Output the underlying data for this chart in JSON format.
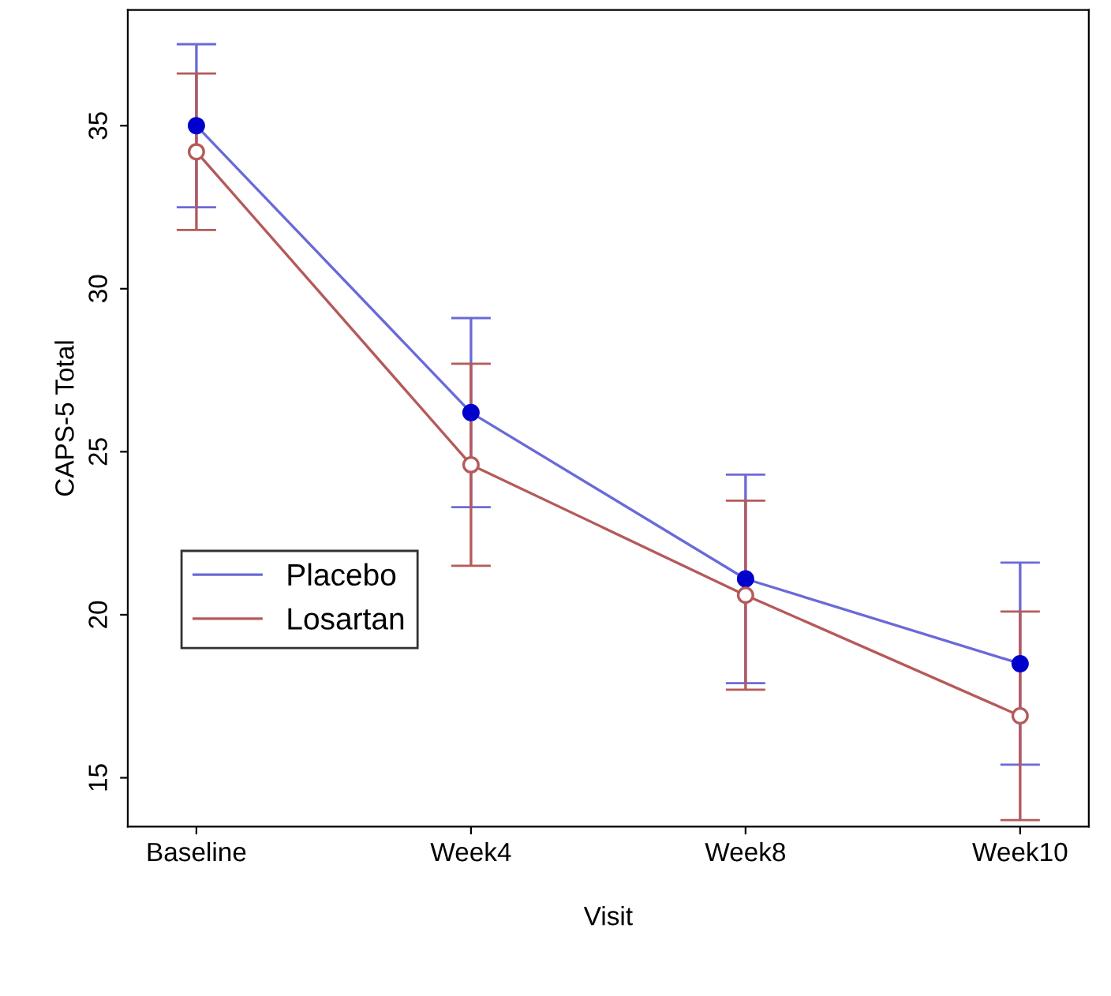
{
  "chart_data": {
    "type": "line",
    "xlabel": "Visit",
    "ylabel": "CAPS-5 Total",
    "categories": [
      "Baseline",
      "Week4",
      "Week8",
      "Week10"
    ],
    "series": [
      {
        "name": "Placebo",
        "color": "#6a6ad8",
        "values": [
          35.0,
          26.2,
          21.1,
          18.5
        ],
        "errors": [
          2.5,
          2.9,
          3.2,
          3.1
        ]
      },
      {
        "name": "Losartan",
        "color": "#b55a5a",
        "values": [
          34.2,
          24.6,
          20.6,
          16.9
        ],
        "errors": [
          2.4,
          3.1,
          2.9,
          3.2
        ]
      }
    ],
    "ylim": [
      13.5,
      38.55
    ],
    "yticks": [
      15,
      20,
      25,
      30,
      35
    ],
    "grid": false,
    "legend": "bottom left",
    "marker": "circle",
    "line_style": "solid"
  }
}
